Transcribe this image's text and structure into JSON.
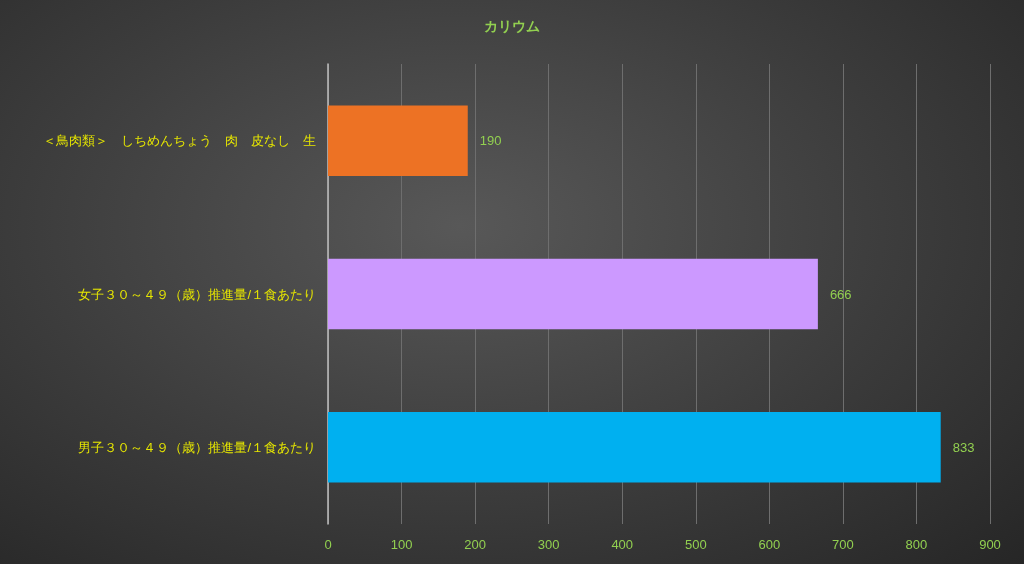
{
  "chart_data": {
    "type": "bar",
    "orientation": "horizontal",
    "title": "カリウム",
    "categories": [
      "＜鳥肉類＞　しちめんちょう　肉　皮なし　生",
      "女子３０～４９（歳）推進量/１食あたり",
      "男子３０～４９（歳）推進量/１食あたり"
    ],
    "values": [
      190,
      666,
      833
    ],
    "colors": [
      "#ed7224",
      "#cc99ff",
      "#00b0f0"
    ],
    "xlim": [
      0,
      900
    ],
    "xticks": [
      0,
      100,
      200,
      300,
      400,
      500,
      600,
      700,
      800,
      900
    ],
    "grid": "x",
    "data_labels": true
  }
}
